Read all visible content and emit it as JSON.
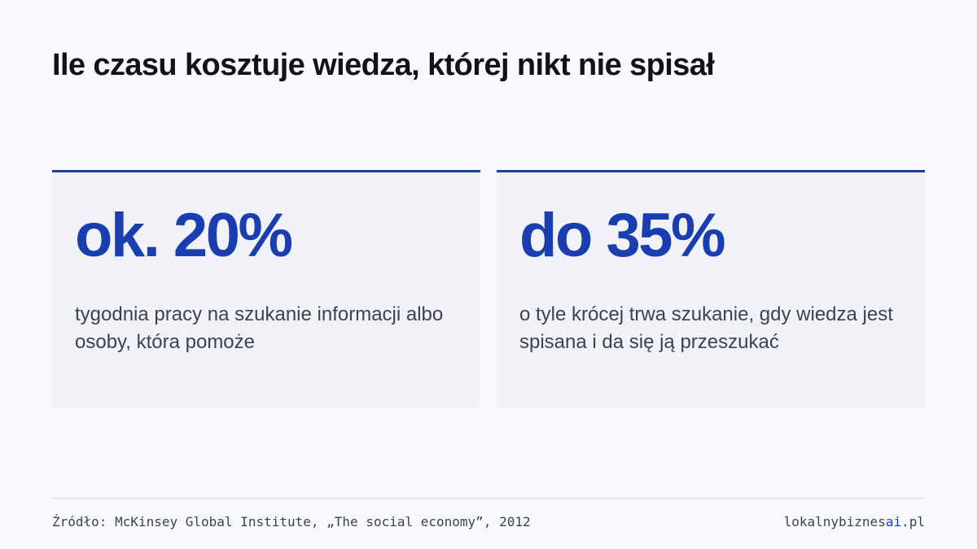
{
  "title": "Ile czasu kosztuje wiedza, której nikt nie spisał",
  "cards": [
    {
      "stat": "ok. 20%",
      "description": "tygodnia pracy na szukanie informacji albo osoby, która pomoże"
    },
    {
      "stat": "do 35%",
      "description": "o tyle krócej trwa szukanie, gdy wiedza jest spisana i da się ją przeszukać"
    }
  ],
  "footer": {
    "source": "Źródło: McKinsey Global Institute, „The social economy”, 2012",
    "brand_prefix": "lokalnybiznes",
    "brand_accent": "ai",
    "brand_suffix": ".pl"
  },
  "colors": {
    "accent": "#1a3db0",
    "card_border": "#1e3fa6",
    "card_background": "#f0f2f8",
    "page_background": "#f8f9fc",
    "title_text": "#111318",
    "body_text": "#3d4250"
  }
}
